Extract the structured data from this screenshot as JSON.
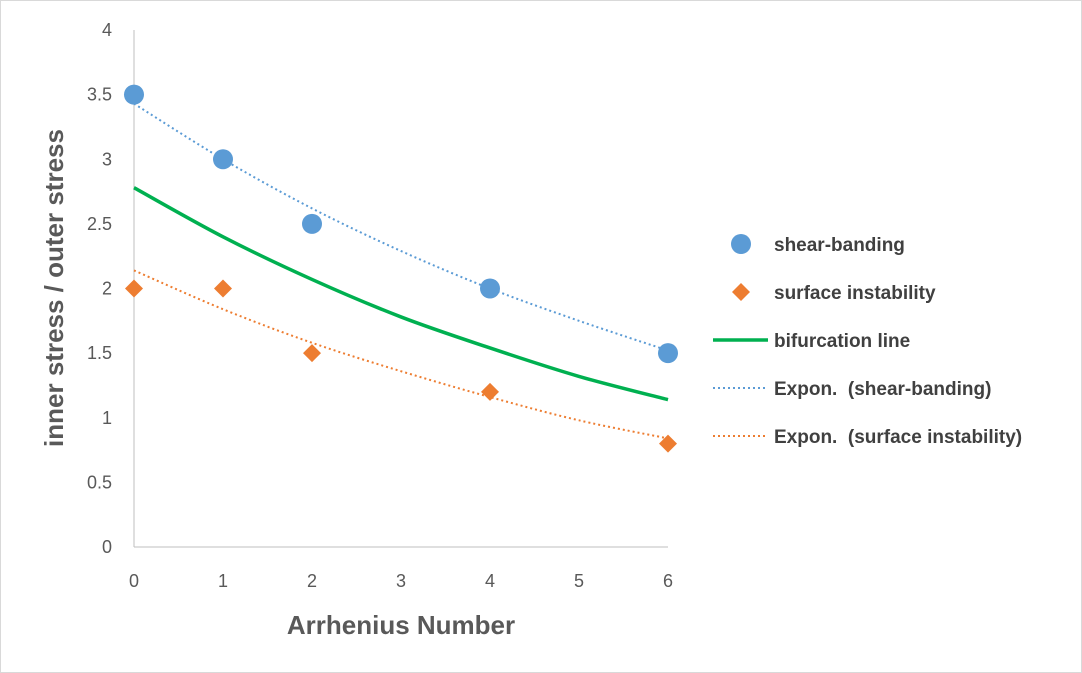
{
  "chart_data": {
    "type": "scatter",
    "xlabel": "Arrhenius Number",
    "ylabel": "inner stress / outer stress",
    "xlim": [
      0,
      6
    ],
    "ylim": [
      0,
      4
    ],
    "x_ticks": [
      "0",
      "1",
      "2",
      "3",
      "4",
      "5",
      "6"
    ],
    "y_ticks": [
      "0",
      "0.5",
      "1",
      "1.5",
      "2",
      "2.5",
      "3",
      "3.5",
      "4"
    ],
    "grid": false,
    "legend_position": "right",
    "series": [
      {
        "name": "shear-banding",
        "kind": "marker",
        "marker": "circle",
        "color": "#5B9BD5",
        "x": [
          0,
          1,
          2,
          4,
          6
        ],
        "y": [
          3.5,
          3.0,
          2.5,
          2.0,
          1.5
        ]
      },
      {
        "name": "surface instability",
        "kind": "marker",
        "marker": "diamond",
        "color": "#ED7D31",
        "x": [
          0,
          1,
          2,
          4,
          6
        ],
        "y": [
          2.0,
          2.0,
          1.5,
          1.2,
          0.8
        ]
      },
      {
        "name": "bifurcation line",
        "kind": "line",
        "style": "solid",
        "color": "#00B050",
        "x": [
          0,
          1,
          2,
          3,
          4,
          5,
          6
        ],
        "y": [
          2.78,
          2.4,
          2.07,
          1.78,
          1.54,
          1.32,
          1.14
        ]
      },
      {
        "name": "Expon.  (shear-banding)",
        "kind": "line",
        "style": "dotted",
        "color": "#5B9BD5",
        "x": [
          0,
          1,
          2,
          3,
          4,
          5,
          6
        ],
        "y": [
          3.43,
          3.0,
          2.62,
          2.29,
          2.0,
          1.75,
          1.52
        ]
      },
      {
        "name": "Expon.  (surface instability)",
        "kind": "line",
        "style": "dotted",
        "color": "#ED7D31",
        "x": [
          0,
          1,
          2,
          3,
          4,
          5,
          6
        ],
        "y": [
          2.14,
          1.84,
          1.58,
          1.36,
          1.16,
          0.98,
          0.84
        ]
      }
    ]
  }
}
